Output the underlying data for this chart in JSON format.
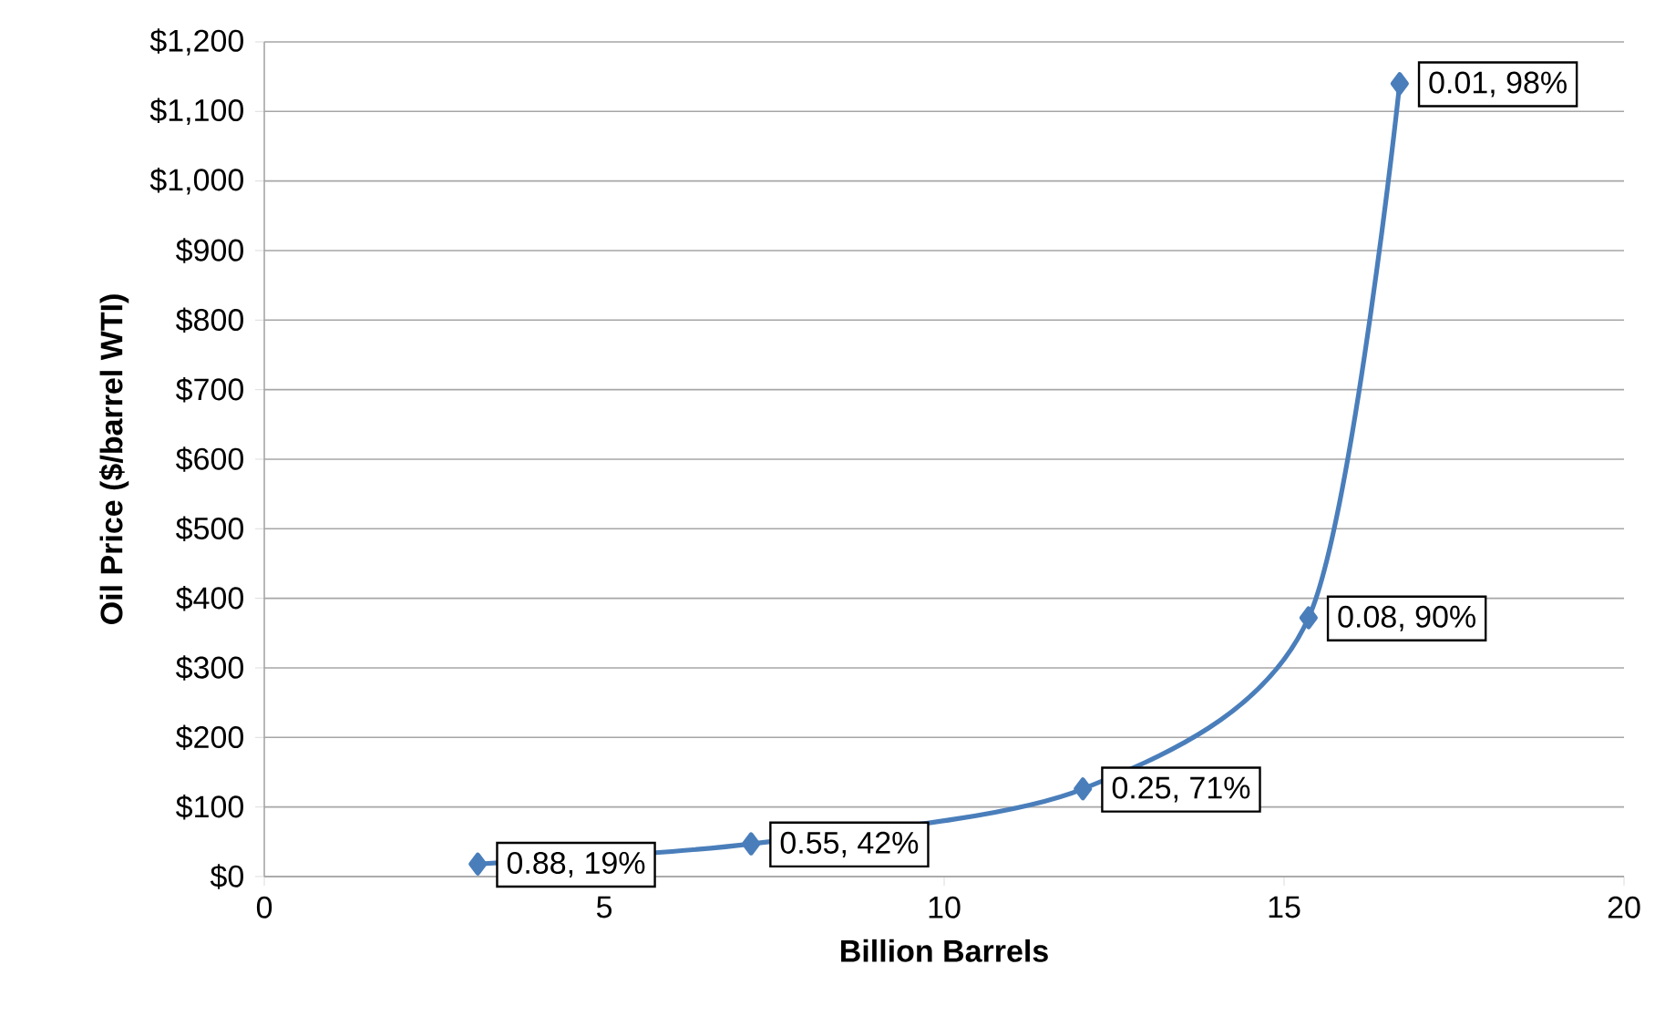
{
  "chart_data": {
    "type": "line",
    "xlabel": "Billion Barrels",
    "ylabel": "Oil Price ($/barrel WTI)",
    "x": [
      3.14,
      7.16,
      12.04,
      15.36,
      16.7
    ],
    "values": [
      18,
      47,
      126,
      372,
      1140
    ],
    "color": "#4a7ebb",
    "marker": "diamond",
    "grid": "y",
    "xlim": [
      0,
      20
    ],
    "ylim": [
      0,
      1200
    ],
    "xticks": [
      0,
      5,
      10,
      15,
      20
    ],
    "yticks": [
      {
        "value": 0,
        "label": "$0"
      },
      {
        "value": 100,
        "label": "$100"
      },
      {
        "value": 200,
        "label": "$200"
      },
      {
        "value": 300,
        "label": "$300"
      },
      {
        "value": 400,
        "label": "$400"
      },
      {
        "value": 500,
        "label": "$500"
      },
      {
        "value": 600,
        "label": "$600"
      },
      {
        "value": 700,
        "label": "$700"
      },
      {
        "value": 800,
        "label": "$800"
      },
      {
        "value": 900,
        "label": "$900"
      },
      {
        "value": 1000,
        "label": "$1,000"
      },
      {
        "value": 1100,
        "label": "$1,100"
      },
      {
        "value": 1200,
        "label": "$1,200"
      }
    ],
    "annotations": [
      {
        "text": "0.88, 19%",
        "x": 3.14,
        "y": 18
      },
      {
        "text": "0.55, 42%",
        "x": 7.16,
        "y": 47
      },
      {
        "text": "0.25, 71%",
        "x": 12.04,
        "y": 126
      },
      {
        "text": "0.08, 90%",
        "x": 15.36,
        "y": 372
      },
      {
        "text": "0.01, 98%",
        "x": 16.7,
        "y": 1140
      }
    ]
  }
}
